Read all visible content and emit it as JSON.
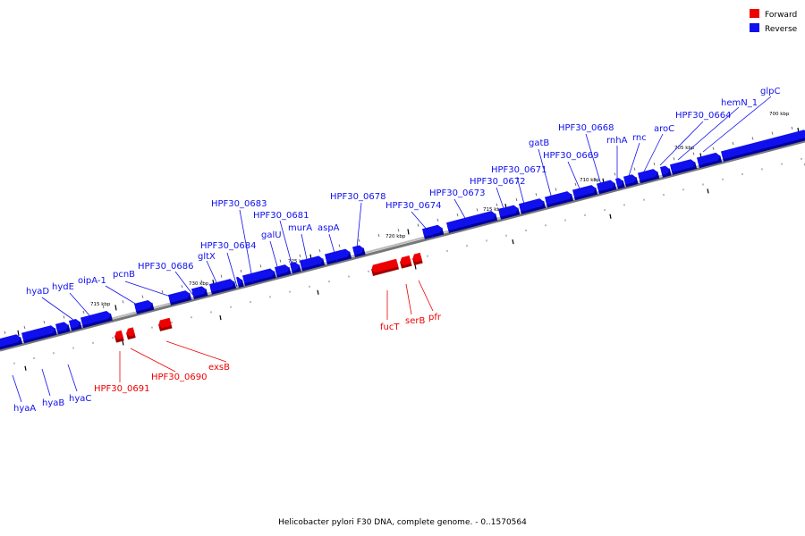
{
  "caption": "Helicobacter pylori F30 DNA, complete genome. - 0..1570564",
  "legend": [
    {
      "label": "Forward",
      "color": "#ee0000"
    },
    {
      "label": "Reverse",
      "color": "#1010ee"
    }
  ],
  "axis_labels": [
    "700 kbp",
    "705 kbp",
    "710 kbp",
    "715 kbp",
    "720 kbp",
    "725 kbp",
    "730 kbp",
    "715 kbp"
  ],
  "genes_reverse": [
    "hyaD",
    "hydE",
    "oipA-1",
    "pcnB",
    "HPF30_0686",
    "gltX",
    "HPF30_0684",
    "HPF30_0683",
    "galU",
    "HPF30_0681",
    "murA",
    "aspA",
    "HPF30_0678",
    "HPF30_0674",
    "HPF30_0673",
    "HPF30_0672",
    "HPF30_0671",
    "gatB",
    "HPF30_0669",
    "HPF30_0668",
    "rnhA",
    "rnc",
    "aroC",
    "HPF30_0664",
    "hemN_1",
    "glpC"
  ],
  "genes_forward": [
    "HPF30_0691",
    "HPF30_0690",
    "exsB",
    "fucT",
    "serB",
    "pfr"
  ],
  "genes_below": [
    "hyaA",
    "hyaB",
    "hyaC"
  ]
}
